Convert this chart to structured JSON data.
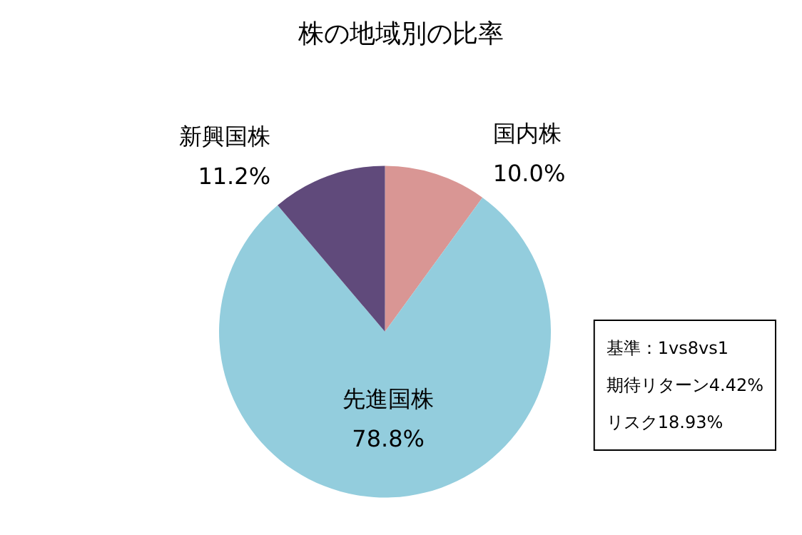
{
  "chart_data": {
    "type": "pie",
    "title": "株の地域別の比率",
    "categories": [
      "国内株",
      "先進国株",
      "新興国株"
    ],
    "values": [
      10.0,
      78.8,
      11.2
    ],
    "value_labels": [
      "10.0%",
      "78.8%",
      "11.2%"
    ],
    "colors": [
      "#d99694",
      "#93cddd",
      "#604a7b"
    ],
    "legend": false,
    "annotations": [
      "基準：1vs8vs1",
      "期待リターン4.42%",
      "リスク18.93%"
    ]
  }
}
